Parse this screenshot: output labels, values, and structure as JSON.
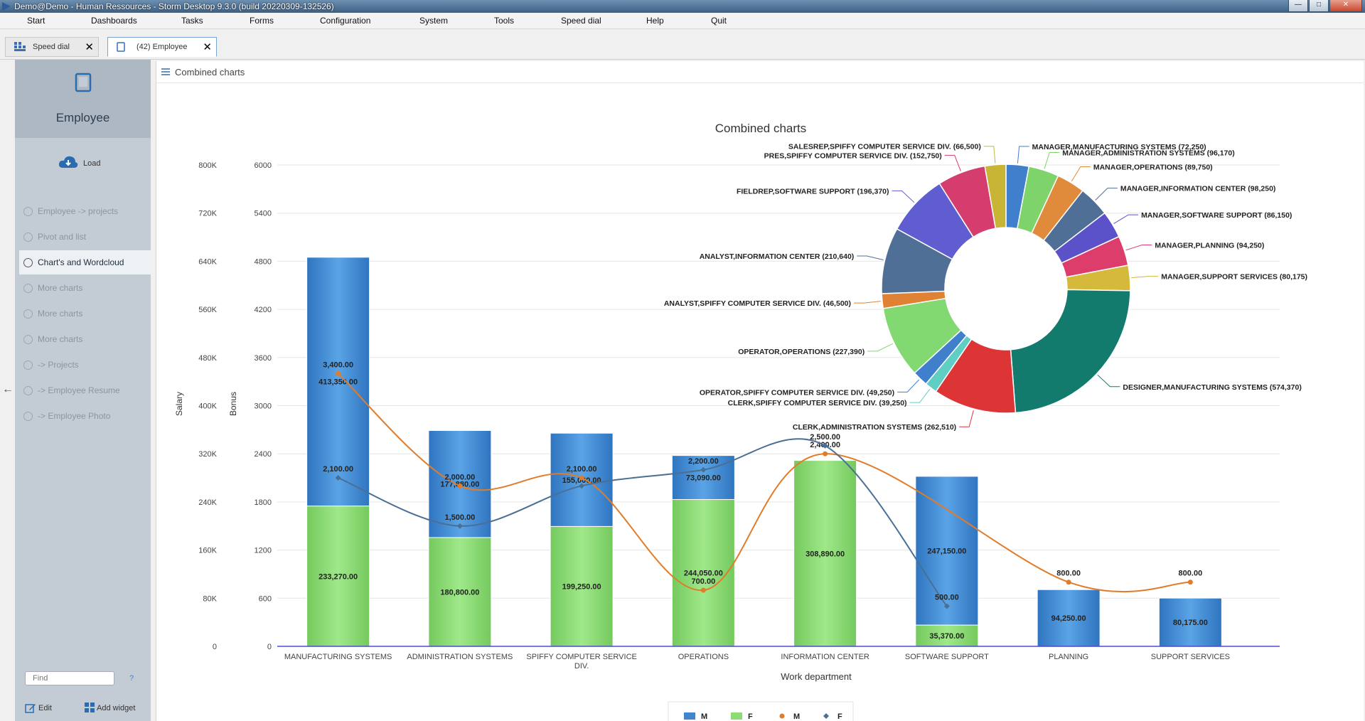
{
  "window": {
    "title": "Demo@Demo - Human Ressources - Storm Desktop 9.3.0 (build 20220309-132526)"
  },
  "menu": [
    "Start",
    "Dashboards",
    "Tasks",
    "Forms",
    "Configuration",
    "System",
    "Tools",
    "Speed dial",
    "Help",
    "Quit"
  ],
  "tabs": [
    {
      "label": "Speed dial",
      "active": false
    },
    {
      "label": "(42) Employee",
      "active": true
    }
  ],
  "sidebar": {
    "title": "Employee",
    "load_label": "Load",
    "items": [
      {
        "label": "Employee -> projects",
        "active": false
      },
      {
        "label": "Pivot and list",
        "active": false
      },
      {
        "label": "Chart's and Wordcloud",
        "active": true
      },
      {
        "label": "More charts",
        "active": false
      },
      {
        "label": "More charts",
        "active": false
      },
      {
        "label": "More charts",
        "active": false
      },
      {
        "label": "-> Projects",
        "active": false
      },
      {
        "label": "-> Employee Resume",
        "active": false
      },
      {
        "label": "-> Employee Photo",
        "active": false
      }
    ],
    "find_placeholder": "Find",
    "help_label": "?",
    "edit_label": "Edit",
    "add_widget_label": "Add widget"
  },
  "panel": {
    "title": "Combined charts"
  },
  "colors": {
    "blue": "#3f86cf",
    "green": "#8bdc74",
    "orange": "#e07c2a",
    "line_blue": "#4a6f95",
    "accent": "#2b6cb0"
  },
  "chart_data": {
    "type": "bar",
    "title": "Combined charts",
    "xlabel": "Work department",
    "ylabel": "Salary",
    "y2label": "Bonus",
    "ylim": [
      0,
      800000
    ],
    "y2lim": [
      0,
      6000
    ],
    "yticks": [
      "0",
      "80K",
      "160K",
      "240K",
      "320K",
      "400K",
      "480K",
      "560K",
      "640K",
      "720K",
      "800K"
    ],
    "y2ticks": [
      "0",
      "600",
      "1200",
      "1800",
      "2400",
      "3000",
      "3600",
      "4200",
      "4800",
      "5400",
      "6000"
    ],
    "categories": [
      "MANUFACTURING SYSTEMS",
      "ADMINISTRATION SYSTEMS",
      "SPIFFY COMPUTER SERVICE DIV.",
      "OPERATIONS",
      "INFORMATION CENTER",
      "SOFTWARE SUPPORT",
      "PLANNING",
      "SUPPORT SERVICES"
    ],
    "stacked_series": [
      {
        "name": "F",
        "values": [
          233270,
          180800,
          199250,
          244050,
          308890,
          35370,
          null,
          null
        ],
        "labels": [
          "233,270.00",
          "180,800.00",
          "199,250.00",
          "244,050.00",
          "308,890.00",
          "35,370.00",
          "",
          ""
        ]
      },
      {
        "name": "M",
        "values": [
          413350,
          177880,
          155000,
          73090,
          null,
          247150,
          94250,
          80175
        ],
        "labels": [
          "413,350.00",
          "177,880.00",
          "155,000.00",
          "73,090.00",
          "",
          "247,150.00",
          "94,250.00",
          "80,175.00"
        ]
      }
    ],
    "line_series": [
      {
        "name": "M",
        "values": [
          3400,
          2000,
          2100,
          700,
          2400,
          null,
          800,
          800
        ],
        "labels": [
          "3,400.00",
          "2,000.00",
          "2,100.00",
          "700.00",
          "2,400.00",
          "",
          "800.00",
          "800.00"
        ]
      },
      {
        "name": "F",
        "values": [
          2100,
          1500,
          2000,
          2200,
          2500,
          500,
          null,
          null
        ],
        "labels": [
          "2,100.00",
          "1,500.00",
          "",
          "2,200.00",
          "2,500.00",
          "500.00",
          "",
          ""
        ]
      }
    ],
    "legend": [
      {
        "name": "M",
        "marker": "bar-blue"
      },
      {
        "name": "F",
        "marker": "bar-green"
      },
      {
        "name": "M",
        "marker": "dot-orange"
      },
      {
        "name": "F",
        "marker": "diamond-blue"
      }
    ],
    "legend_position": "bottom-center",
    "pie": {
      "type": "donut",
      "slices": [
        {
          "label": "MANAGER,MANUFACTURING SYSTEMS (72,250)",
          "value": 72250,
          "color": "#3f7fcc"
        },
        {
          "label": "MANAGER,ADMINISTRATION SYSTEMS (96,170)",
          "value": 96170,
          "color": "#7ed36a"
        },
        {
          "label": "MANAGER,OPERATIONS (89,750)",
          "value": 89750,
          "color": "#e08a3c"
        },
        {
          "label": "MANAGER,INFORMATION CENTER (98,250)",
          "value": 98250,
          "color": "#4f6f97"
        },
        {
          "label": "MANAGER,SOFTWARE SUPPORT (86,150)",
          "value": 86150,
          "color": "#5b52c9"
        },
        {
          "label": "MANAGER,PLANNING (94,250)",
          "value": 94250,
          "color": "#dd3d6b"
        },
        {
          "label": "MANAGER,SUPPORT SERVICES (80,175)",
          "value": 80175,
          "color": "#d5b93a"
        },
        {
          "label": "DESIGNER,MANUFACTURING SYSTEMS (574,370)",
          "value": 574370,
          "color": "#137a6e"
        },
        {
          "label": "CLERK,ADMINISTRATION SYSTEMS (262,510)",
          "value": 262510,
          "color": "#dd3535"
        },
        {
          "label": "CLERK,SPIFFY COMPUTER SERVICE DIV. (39,250)",
          "value": 39250,
          "color": "#5fcfc3"
        },
        {
          "label": "OPERATOR,SPIFFY COMPUTER SERVICE DIV. (49,250)",
          "value": 49250,
          "color": "#3f7fcc"
        },
        {
          "label": "OPERATOR,OPERATIONS (227,390)",
          "value": 227390,
          "color": "#82d871"
        },
        {
          "label": "ANALYST,SPIFFY COMPUTER SERVICE DIV. (46,500)",
          "value": 46500,
          "color": "#e08234"
        },
        {
          "label": "ANALYST,INFORMATION CENTER (210,640)",
          "value": 210640,
          "color": "#506f97"
        },
        {
          "label": "FIELDREP,SOFTWARE SUPPORT (196,370)",
          "value": 196370,
          "color": "#5f5dd0"
        },
        {
          "label": "PRES,SPIFFY COMPUTER SERVICE DIV. (152,750)",
          "value": 152750,
          "color": "#d43d6e"
        },
        {
          "label": "SALESREP,SPIFFY COMPUTER SERVICE DIV. (66,500)",
          "value": 66500,
          "color": "#c9b535"
        }
      ]
    }
  }
}
